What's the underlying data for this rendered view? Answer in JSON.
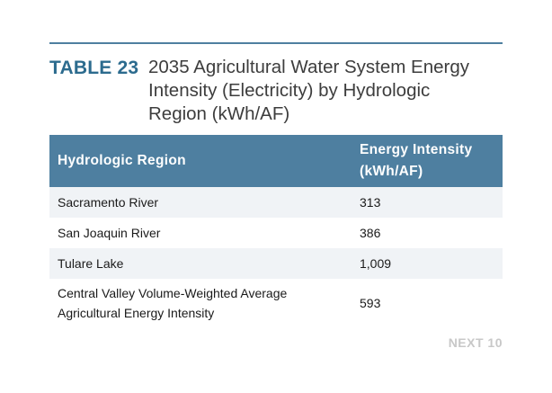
{
  "caption": {
    "label": "TABLE 23",
    "title": "2035 Agricultural Water System Energy Intensity (Electricity) by Hydrologic Region (kWh/AF)"
  },
  "table": {
    "headers": {
      "region": "Hydrologic Region",
      "energy": "Energy Intensity (kWh/AF)"
    },
    "rows": [
      {
        "region": "Sacramento River",
        "energy": "313"
      },
      {
        "region": "San Joaquin River",
        "energy": "386"
      },
      {
        "region": "Tulare Lake",
        "energy": "1,009"
      },
      {
        "region": "Central Valley Volume-Weighted Average Agricultural Energy Intensity",
        "energy": "593"
      }
    ]
  },
  "nav": {
    "next_label": "NEXT 10"
  },
  "colors": {
    "accent": "#4e7fa0",
    "label": "#2c6b8e",
    "row_shade": "#f0f3f6",
    "next_link": "#c8c8c8"
  }
}
